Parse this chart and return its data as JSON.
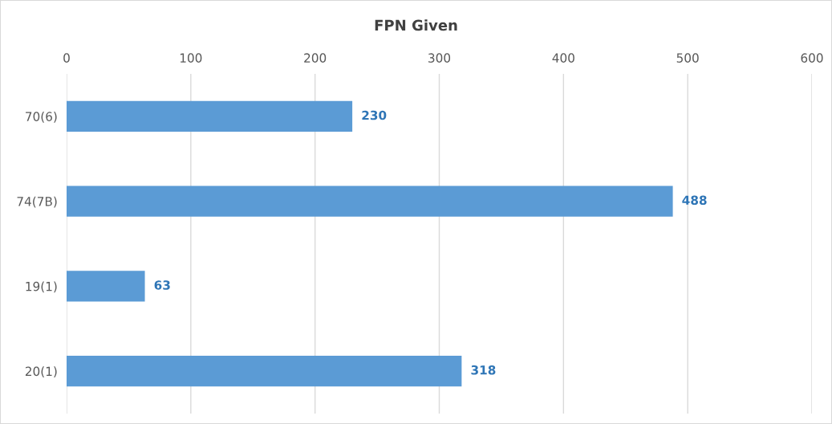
{
  "chart_data": {
    "type": "bar",
    "orientation": "horizontal",
    "title": "FPN Given",
    "categories": [
      "70(6)",
      "74(7B)",
      "19(1)",
      "20(1)"
    ],
    "values": [
      230,
      488,
      63,
      318
    ],
    "color": "#5b9bd5",
    "xlim": [
      0,
      600
    ],
    "xticks": [
      0,
      100,
      200,
      300,
      400,
      500,
      600
    ],
    "grid": "x",
    "data_labels": true
  }
}
